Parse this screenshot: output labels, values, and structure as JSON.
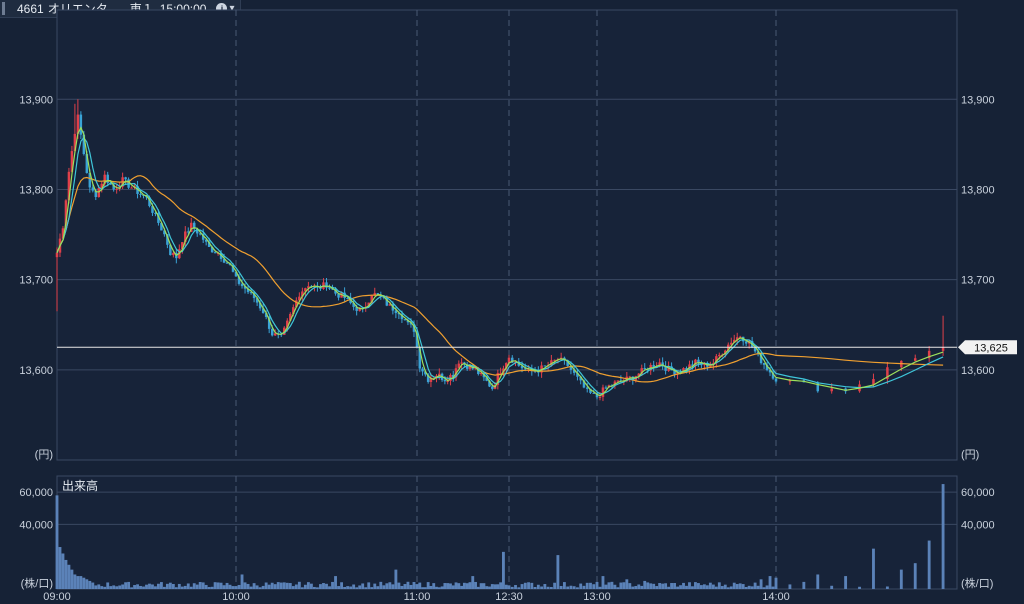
{
  "header": {
    "symbol": "4661",
    "name": "オリエンタ…",
    "market": "東１",
    "time": "15:00:00",
    "info_icon": "info-circle-icon",
    "dropdown_icon": "caret-down-icon"
  },
  "colors": {
    "up": "#e0404a",
    "down": "#3aa3d6",
    "ma_short": "#9de05a",
    "ma_mid": "#3fc6d9",
    "ma_long": "#f0a030",
    "volume": "#5b82b8",
    "current_line": "#e8e8e8"
  },
  "chart_data": [
    {
      "type": "candlestick",
      "x_ticks": [
        "09:00",
        "10:00",
        "11:00",
        "12:30",
        "13:00",
        "14:00"
      ],
      "unit_label": "(円)",
      "ylim": [
        13500,
        13999
      ],
      "y_ticks": [
        "13,600",
        "13,700",
        "13,800",
        "13,900"
      ],
      "current_price": 13625,
      "current_price_label": "13,625",
      "legend_axis_ticks": [
        "13,600",
        "13,700",
        "13,800",
        "13,900"
      ],
      "anchors": [
        {
          "i": 0,
          "p": 13730
        },
        {
          "i": 2,
          "p": 13760
        },
        {
          "i": 4,
          "p": 13820
        },
        {
          "i": 6,
          "p": 13865
        },
        {
          "i": 7,
          "p": 13880
        },
        {
          "i": 9,
          "p": 13840
        },
        {
          "i": 11,
          "p": 13800
        },
        {
          "i": 13,
          "p": 13795
        },
        {
          "i": 16,
          "p": 13815
        },
        {
          "i": 19,
          "p": 13800
        },
        {
          "i": 22,
          "p": 13810
        },
        {
          "i": 26,
          "p": 13800
        },
        {
          "i": 30,
          "p": 13790
        },
        {
          "i": 33,
          "p": 13770
        },
        {
          "i": 36,
          "p": 13750
        },
        {
          "i": 38,
          "p": 13730
        },
        {
          "i": 40,
          "p": 13725
        },
        {
          "i": 42,
          "p": 13745
        },
        {
          "i": 45,
          "p": 13760
        },
        {
          "i": 48,
          "p": 13750
        },
        {
          "i": 51,
          "p": 13735
        },
        {
          "i": 54,
          "p": 13730
        },
        {
          "i": 58,
          "p": 13715
        },
        {
          "i": 60,
          "p": 13700
        },
        {
          "i": 63,
          "p": 13690
        },
        {
          "i": 66,
          "p": 13680
        },
        {
          "i": 69,
          "p": 13665
        },
        {
          "i": 72,
          "p": 13640
        },
        {
          "i": 75,
          "p": 13635
        },
        {
          "i": 78,
          "p": 13660
        },
        {
          "i": 81,
          "p": 13685
        },
        {
          "i": 84,
          "p": 13695
        },
        {
          "i": 87,
          "p": 13690
        },
        {
          "i": 90,
          "p": 13695
        },
        {
          "i": 93,
          "p": 13685
        },
        {
          "i": 96,
          "p": 13680
        },
        {
          "i": 99,
          "p": 13670
        },
        {
          "i": 102,
          "p": 13665
        },
        {
          "i": 105,
          "p": 13685
        },
        {
          "i": 108,
          "p": 13680
        },
        {
          "i": 111,
          "p": 13670
        },
        {
          "i": 114,
          "p": 13665
        },
        {
          "i": 117,
          "p": 13650
        },
        {
          "i": 119,
          "p": 13645
        },
        {
          "i": 121,
          "p": 13605
        },
        {
          "i": 124,
          "p": 13590
        },
        {
          "i": 127,
          "p": 13595
        },
        {
          "i": 130,
          "p": 13590
        },
        {
          "i": 133,
          "p": 13595
        },
        {
          "i": 135,
          "p": 13610
        },
        {
          "i": 138,
          "p": 13605
        },
        {
          "i": 141,
          "p": 13600
        },
        {
          "i": 144,
          "p": 13590
        },
        {
          "i": 147,
          "p": 13580
        },
        {
          "i": 150,
          "p": 13600
        },
        {
          "i": 153,
          "p": 13615
        },
        {
          "i": 156,
          "p": 13605
        },
        {
          "i": 159,
          "p": 13598
        },
        {
          "i": 162,
          "p": 13600
        },
        {
          "i": 165,
          "p": 13605
        },
        {
          "i": 168,
          "p": 13612
        },
        {
          "i": 171,
          "p": 13605
        },
        {
          "i": 174,
          "p": 13590
        },
        {
          "i": 177,
          "p": 13575
        },
        {
          "i": 180,
          "p": 13570
        },
        {
          "i": 183,
          "p": 13580
        },
        {
          "i": 186,
          "p": 13585
        },
        {
          "i": 189,
          "p": 13588
        },
        {
          "i": 192,
          "p": 13592
        },
        {
          "i": 195,
          "p": 13598
        },
        {
          "i": 198,
          "p": 13604
        },
        {
          "i": 201,
          "p": 13608
        },
        {
          "i": 204,
          "p": 13600
        },
        {
          "i": 207,
          "p": 13598
        },
        {
          "i": 210,
          "p": 13602
        },
        {
          "i": 213,
          "p": 13608
        },
        {
          "i": 216,
          "p": 13605
        },
        {
          "i": 219,
          "p": 13608
        },
        {
          "i": 222,
          "p": 13620
        },
        {
          "i": 225,
          "p": 13632
        },
        {
          "i": 228,
          "p": 13638
        },
        {
          "i": 231,
          "p": 13630
        },
        {
          "i": 234,
          "p": 13615
        },
        {
          "i": 237,
          "p": 13602
        },
        {
          "i": 240,
          "p": 13590
        },
        {
          "i": 243,
          "p": 13580
        },
        {
          "i": 245,
          "p": 13578
        },
        {
          "i": 247,
          "p": 13592
        },
        {
          "i": 249,
          "p": 13610
        },
        {
          "i": 251,
          "p": 13620
        },
        {
          "i": 252,
          "p": 13625
        }
      ],
      "special_highs": [
        {
          "i": 6,
          "p": 13895
        },
        {
          "i": 7,
          "p": 13900
        },
        {
          "i": 252,
          "p": 13660
        }
      ]
    },
    {
      "type": "bar",
      "title": "出来高",
      "unit_label": "(株/口)",
      "ylim": [
        0,
        70000
      ],
      "y_ticks": [
        "40,000",
        "60,000"
      ],
      "typical_volume": 2500,
      "spikes": [
        {
          "i": 0,
          "v": 58000
        },
        {
          "i": 1,
          "v": 26000
        },
        {
          "i": 2,
          "v": 22000
        },
        {
          "i": 3,
          "v": 18000
        },
        {
          "i": 4,
          "v": 15000
        },
        {
          "i": 5,
          "v": 12000
        },
        {
          "i": 6,
          "v": 9000
        },
        {
          "i": 7,
          "v": 8000
        },
        {
          "i": 8,
          "v": 8000
        },
        {
          "i": 9,
          "v": 7000
        },
        {
          "i": 10,
          "v": 6000
        },
        {
          "i": 11,
          "v": 5000
        },
        {
          "i": 12,
          "v": 4000
        },
        {
          "i": 62,
          "v": 9000
        },
        {
          "i": 93,
          "v": 8000
        },
        {
          "i": 113,
          "v": 12000
        },
        {
          "i": 140,
          "v": 8000
        },
        {
          "i": 151,
          "v": 23000
        },
        {
          "i": 168,
          "v": 21000
        },
        {
          "i": 182,
          "v": 8000
        },
        {
          "i": 190,
          "v": 6000
        },
        {
          "i": 196,
          "v": 5000
        },
        {
          "i": 235,
          "v": 6000
        },
        {
          "i": 238,
          "v": 8000
        },
        {
          "i": 240,
          "v": 7000
        },
        {
          "i": 243,
          "v": 9000
        },
        {
          "i": 245,
          "v": 8000
        },
        {
          "i": 247,
          "v": 25000
        },
        {
          "i": 249,
          "v": 12000
        },
        {
          "i": 250,
          "v": 16000
        },
        {
          "i": 251,
          "v": 30000
        },
        {
          "i": 252,
          "v": 65000
        }
      ]
    }
  ]
}
